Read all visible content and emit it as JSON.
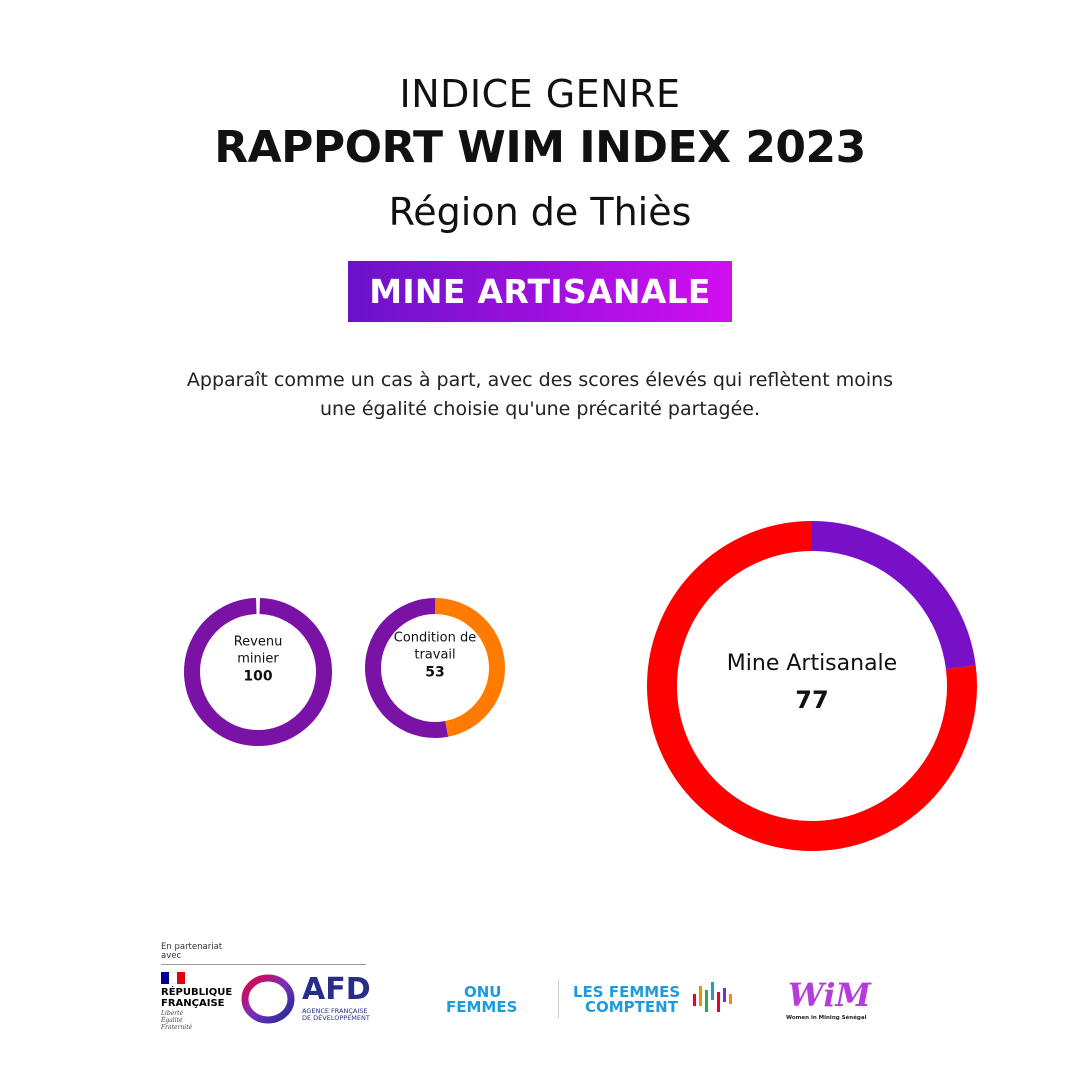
{
  "header": {
    "kicker": "INDICE GENRE",
    "title": "RAPPORT WIM INDEX 2023",
    "region": "Région de Thiès",
    "badge": "MINE ARTISANALE",
    "description_line1": "Apparaît comme un cas à part, avec des scores élevés qui reflètent moins",
    "description_line2": "une égalité choisie qu'une précarité partagée."
  },
  "chart_data": [
    {
      "type": "pie",
      "variant": "donut",
      "label_lines": [
        "Revenu",
        "minier"
      ],
      "value": 100,
      "max": 100,
      "colors": {
        "score": "#7b12a6",
        "remainder": "#ff7b00"
      }
    },
    {
      "type": "pie",
      "variant": "donut",
      "label_lines": [
        "Condition de",
        "travail"
      ],
      "value": 53,
      "max": 100,
      "colors": {
        "score": "#7b12a6",
        "remainder": "#ff7b00"
      }
    },
    {
      "type": "pie",
      "variant": "donut",
      "label_lines": [
        "Mine Artisanale"
      ],
      "value": 77,
      "max": 100,
      "colors": {
        "score": "#ff0000",
        "remainder": "#7810c8"
      }
    }
  ],
  "footer": {
    "partner_note_line1": "En partenariat",
    "partner_note_line2": "avec",
    "republique_line1": "RÉPUBLIQUE",
    "republique_line2": "FRANÇAISE",
    "motto_line1": "Liberté",
    "motto_line2": "Égalité",
    "motto_line3": "Fraternité",
    "afd": "AFD",
    "afd_sub_line1": "AGENCE FRANÇAISE",
    "afd_sub_line2": "DE DÉVELOPPEMENT",
    "onu_line1": "ONU",
    "onu_line2": "FEMMES",
    "lfc_line1": "LES FEMMES",
    "lfc_line2": "COMPTENT",
    "wim": "WiM",
    "wim_sub": "Women in Mining Sénégal"
  }
}
